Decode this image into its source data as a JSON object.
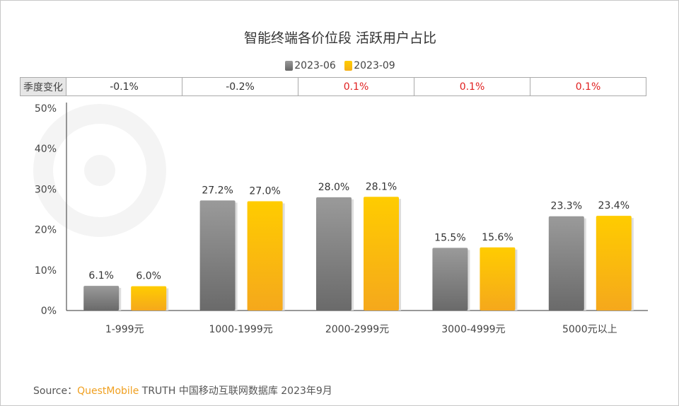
{
  "title": "智能终端各价位段 活跃用户占比",
  "watermark": "QUEST MOBILE",
  "legend": [
    {
      "label": "2023-06",
      "color": "#808080"
    },
    {
      "label": "2023-09",
      "color": "#ffc20e"
    }
  ],
  "table": {
    "header": "季度变化",
    "values": [
      "-0.1%",
      "-0.2%",
      "0.1%",
      "0.1%",
      "0.1%"
    ],
    "colors": [
      "#333333",
      "#333333",
      "#e02020",
      "#e02020",
      "#e02020"
    ]
  },
  "chart_data": {
    "type": "bar",
    "title": "智能终端各价位段 活跃用户占比",
    "categories": [
      "1-999元",
      "1000-1999元",
      "2000-2999元",
      "3000-4999元",
      "5000元以上"
    ],
    "series": [
      {
        "name": "2023-06",
        "values": [
          6.1,
          27.2,
          28.0,
          15.5,
          23.3
        ],
        "labels": [
          "6.1%",
          "27.2%",
          "28.0%",
          "15.5%",
          "23.3%"
        ],
        "color": "#808080"
      },
      {
        "name": "2023-09",
        "values": [
          6.0,
          27.0,
          28.1,
          15.6,
          23.4
        ],
        "labels": [
          "6.0%",
          "27.0%",
          "28.1%",
          "15.6%",
          "23.4%"
        ],
        "color": "#ffc20e"
      }
    ],
    "yticks": [
      "0%",
      "10%",
      "20%",
      "30%",
      "40%",
      "50%"
    ],
    "ylim": [
      0,
      50
    ],
    "grid": false,
    "legend_position": "top"
  },
  "source": {
    "prefix": "Source：",
    "brand": "QuestMobile",
    "rest": "TRUTH 中国移动互联网数据库 2023年9月"
  }
}
